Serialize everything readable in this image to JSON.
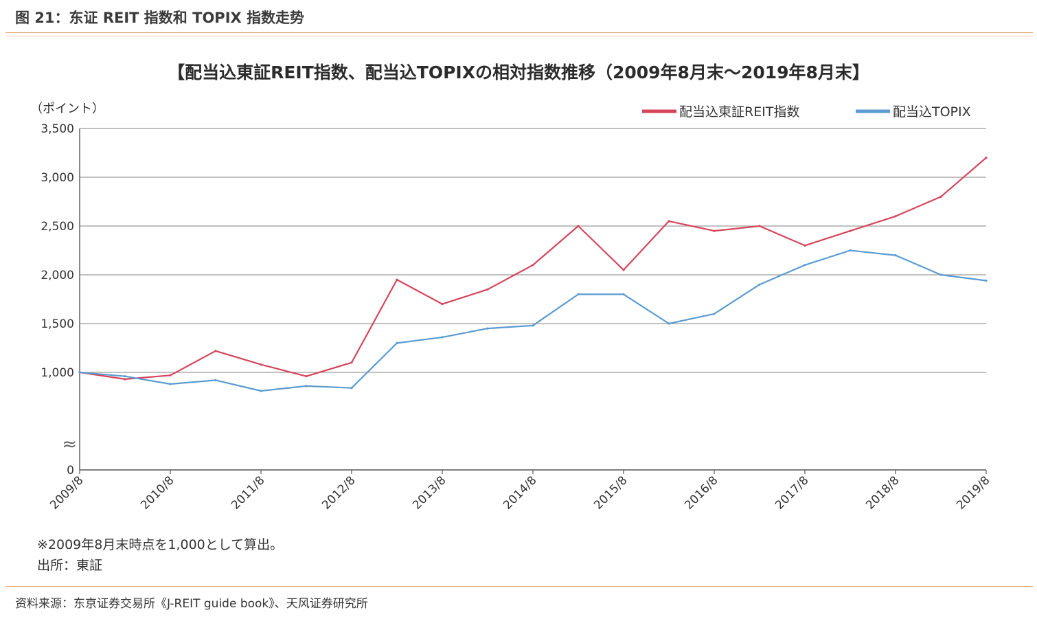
{
  "header": {
    "figure_title": "图 21：东证 REIT 指数和 TOPIX 指数走势",
    "source": "资料来源：东京证券交易所《J-REIT guide book》、天风证券研究所"
  },
  "chart_data": {
    "type": "line",
    "title": "【配当込東証REIT指数、配当込TOPIXの相対指数推移（2009年8月末～2019年8月末】",
    "ylabel": "（ポイント）",
    "xlabel": "",
    "ylim": [
      0,
      3500
    ],
    "yticks": [
      0,
      1000,
      1500,
      2000,
      2500,
      3000,
      3500
    ],
    "ytick_labels": [
      "0",
      "1,000",
      "1,500",
      "2,000",
      "2,500",
      "3,000",
      "3,500"
    ],
    "axis_break": "≈",
    "x": [
      "2009/8",
      "2010/2",
      "2010/8",
      "2011/2",
      "2011/8",
      "2012/2",
      "2012/8",
      "2013/2",
      "2013/8",
      "2014/2",
      "2014/8",
      "2015/2",
      "2015/8",
      "2016/2",
      "2016/8",
      "2017/2",
      "2017/8",
      "2018/2",
      "2018/8",
      "2019/2",
      "2019/8"
    ],
    "xtick_labels": [
      "2009/8",
      "2010/8",
      "2011/8",
      "2012/8",
      "2013/8",
      "2014/8",
      "2015/8",
      "2016/8",
      "2017/8",
      "2018/8",
      "2019/8"
    ],
    "grid": true,
    "legend_position": "top-right",
    "series": [
      {
        "name": "配当込東証REIT指数",
        "color": "#d6445a",
        "values": [
          1000,
          930,
          970,
          1220,
          1080,
          960,
          1100,
          1950,
          1700,
          1850,
          2100,
          2500,
          2050,
          2550,
          2450,
          2500,
          2300,
          2450,
          2600,
          2800,
          3200
        ]
      },
      {
        "name": "配当込TOPIX",
        "color": "#5b9bd1",
        "values": [
          1000,
          960,
          880,
          920,
          810,
          860,
          840,
          1300,
          1360,
          1450,
          1480,
          1800,
          1800,
          1500,
          1600,
          1900,
          2100,
          2250,
          2200,
          2000,
          1940
        ]
      }
    ]
  },
  "notes": {
    "line1": "※2009年8月末時点を1,000として算出。",
    "line2": "出所：東証"
  }
}
